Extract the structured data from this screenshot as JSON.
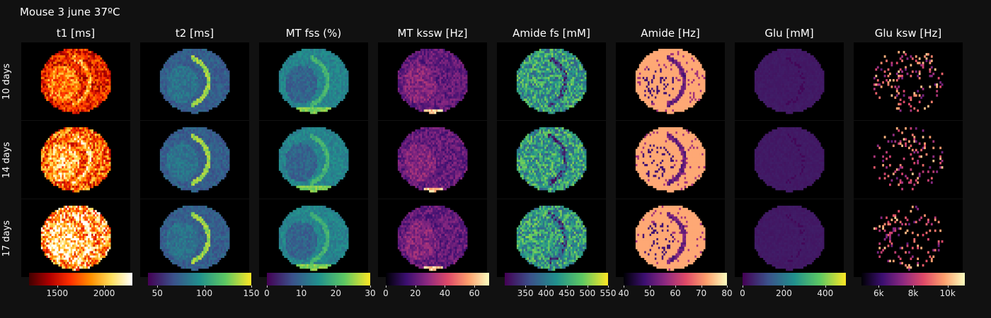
{
  "title": "Mouse 3 june 37ºC",
  "chart_data": {
    "type": "heatmap",
    "title": "Mouse 3 june 37ºC",
    "rows": [
      "10 days",
      "14 days",
      "17 days"
    ],
    "columns": [
      {
        "title": "t1 [ms]",
        "colormap": "hot",
        "range": [
          1200,
          2300
        ],
        "ticks": [
          {
            "label": "1500",
            "value": 1500
          },
          {
            "label": "2000",
            "value": 2000
          }
        ]
      },
      {
        "title": "t2 [ms]",
        "colormap": "viridis",
        "range": [
          40,
          150
        ],
        "ticks": [
          {
            "label": "50",
            "value": 50
          },
          {
            "label": "100",
            "value": 100
          },
          {
            "label": "150",
            "value": 150
          }
        ]
      },
      {
        "title": "MT fss (%)",
        "colormap": "viridis",
        "range": [
          0,
          30
        ],
        "ticks": [
          {
            "label": "0",
            "value": 0
          },
          {
            "label": "10",
            "value": 10
          },
          {
            "label": "20",
            "value": 20
          },
          {
            "label": "30",
            "value": 30
          }
        ]
      },
      {
        "title": "MT kssw [Hz]",
        "colormap": "magma",
        "range": [
          0,
          70
        ],
        "ticks": [
          {
            "label": "0",
            "value": 0
          },
          {
            "label": "20",
            "value": 20
          },
          {
            "label": "40",
            "value": 40
          },
          {
            "label": "60",
            "value": 60
          }
        ]
      },
      {
        "title": "Amide fs [mM]",
        "colormap": "viridis",
        "range": [
          300,
          550
        ],
        "ticks": [
          {
            "label": "350",
            "value": 350
          },
          {
            "label": "400",
            "value": 400
          },
          {
            "label": "450",
            "value": 450
          },
          {
            "label": "500",
            "value": 500
          },
          {
            "label": "550",
            "value": 550
          }
        ]
      },
      {
        "title": "Amide [Hz]",
        "colormap": "magma",
        "range": [
          40,
          80
        ],
        "ticks": [
          {
            "label": "40",
            "value": 40
          },
          {
            "label": "50",
            "value": 50
          },
          {
            "label": "60",
            "value": 60
          },
          {
            "label": "70",
            "value": 70
          },
          {
            "label": "80",
            "value": 80
          }
        ]
      },
      {
        "title": "Glu [mM]",
        "colormap": "viridis",
        "range": [
          0,
          500
        ],
        "ticks": [
          {
            "label": "0",
            "value": 0
          },
          {
            "label": "200",
            "value": 200
          },
          {
            "label": "400",
            "value": 400
          }
        ]
      },
      {
        "title": "Glu ksw [Hz]",
        "colormap": "magma",
        "range": [
          5000,
          11000
        ],
        "ticks": [
          {
            "label": "6k",
            "value": 6000
          },
          {
            "label": "8k",
            "value": 8000
          },
          {
            "label": "10k",
            "value": 10000
          }
        ]
      }
    ],
    "colors": {
      "background": "#111111",
      "panel_background": "#000000",
      "hot": [
        "#400000",
        "#b00000",
        "#ff3000",
        "#ff9000",
        "#ffe060",
        "#ffffff"
      ],
      "viridis": [
        "#440154",
        "#3b528b",
        "#21908d",
        "#5dc863",
        "#fde725"
      ],
      "magma": [
        "#000004",
        "#3b0f70",
        "#8c2981",
        "#de4968",
        "#fe9f6d",
        "#fcfdbf"
      ]
    }
  }
}
